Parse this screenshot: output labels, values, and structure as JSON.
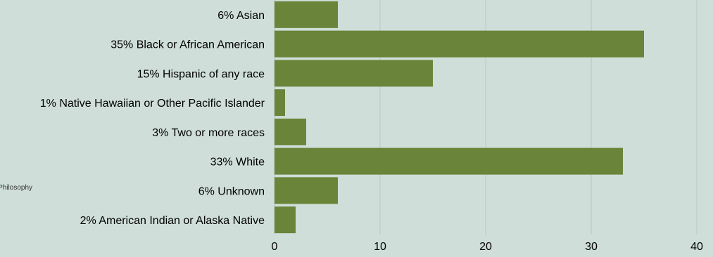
{
  "side_text": "Philosophy",
  "colors": {
    "background": "#cfded8",
    "bar": "#6a843a",
    "gridline": "#b9c8c2"
  },
  "chart_data": {
    "type": "bar",
    "orientation": "horizontal",
    "title": "",
    "xlabel": "",
    "ylabel": "",
    "categories": [
      "6% Asian",
      "35% Black or African American",
      "15% Hispanic of any race",
      "1% Native Hawaiian or Other Pacific Islander",
      "3% Two or more races",
      "33% White",
      "6% Unknown",
      "2% American Indian or Alaska Native"
    ],
    "values": [
      6,
      35,
      15,
      1,
      3,
      33,
      6,
      2
    ],
    "xlim": [
      0,
      40
    ],
    "xticks": [
      "0",
      "10",
      "20",
      "30",
      "40"
    ],
    "grid": true,
    "legend": "none"
  }
}
